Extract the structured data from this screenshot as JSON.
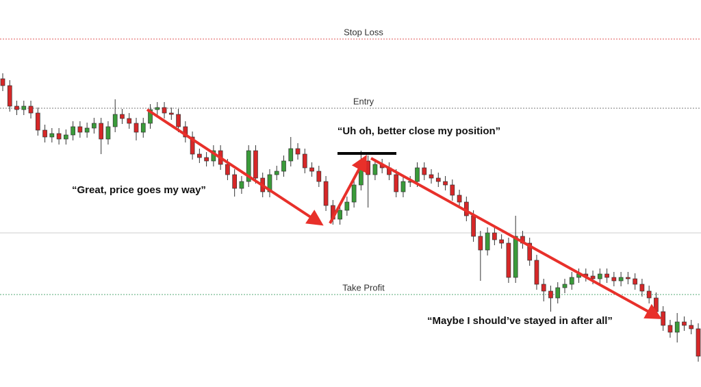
{
  "chart_data": {
    "type": "candlestick",
    "ylim": [
      0,
      565
    ],
    "up_color": "#3a9b3a",
    "down_color": "#d62728",
    "open": [
      450,
      440,
      410,
      405,
      410,
      400,
      375,
      365,
      370,
      362,
      368,
      380,
      372,
      378,
      385,
      362,
      380,
      398,
      392,
      385,
      372,
      385,
      405,
      408,
      400,
      398,
      380,
      365,
      340,
      335,
      330,
      345,
      325,
      310,
      290,
      300,
      345,
      305,
      285,
      310,
      315,
      330,
      348,
      340,
      320,
      315,
      300,
      265,
      245,
      258,
      270,
      295,
      330,
      310,
      325,
      320,
      310,
      285,
      300,
      300,
      320,
      310,
      305,
      300,
      295,
      280,
      270,
      250,
      220,
      200,
      225,
      215,
      210,
      160,
      220,
      210,
      185,
      150,
      140,
      130,
      145,
      150,
      160,
      165,
      162,
      158,
      165,
      160,
      155,
      160,
      158,
      150,
      140,
      130,
      110,
      90,
      80,
      95,
      90,
      85
    ],
    "high": [
      458,
      448,
      418,
      418,
      418,
      408,
      383,
      378,
      378,
      376,
      388,
      388,
      386,
      393,
      393,
      388,
      420,
      406,
      400,
      393,
      393,
      413,
      416,
      416,
      408,
      406,
      388,
      373,
      348,
      343,
      353,
      353,
      333,
      318,
      308,
      353,
      353,
      313,
      318,
      323,
      338,
      365,
      356,
      348,
      328,
      323,
      308,
      273,
      266,
      278,
      303,
      345,
      338,
      333,
      333,
      328,
      318,
      308,
      308,
      328,
      328,
      318,
      313,
      308,
      303,
      288,
      278,
      258,
      228,
      233,
      233,
      223,
      218,
      250,
      228,
      218,
      193,
      158,
      148,
      153,
      158,
      168,
      173,
      173,
      170,
      173,
      173,
      168,
      168,
      168,
      166,
      158,
      148,
      138,
      118,
      98,
      108,
      103,
      98,
      93
    ],
    "low": [
      432,
      402,
      397,
      397,
      392,
      367,
      357,
      357,
      354,
      354,
      360,
      364,
      364,
      370,
      340,
      354,
      372,
      384,
      377,
      360,
      364,
      377,
      397,
      392,
      390,
      372,
      357,
      332,
      327,
      322,
      322,
      317,
      302,
      278,
      282,
      292,
      297,
      277,
      277,
      302,
      307,
      322,
      332,
      312,
      307,
      292,
      257,
      237,
      237,
      250,
      262,
      287,
      262,
      302,
      312,
      302,
      277,
      277,
      292,
      292,
      302,
      297,
      292,
      287,
      272,
      262,
      242,
      212,
      155,
      192,
      207,
      202,
      152,
      152,
      202,
      177,
      142,
      125,
      110,
      122,
      137,
      142,
      152,
      154,
      150,
      150,
      152,
      147,
      147,
      150,
      142,
      132,
      122,
      102,
      82,
      72,
      65,
      82,
      77,
      37
    ],
    "close": [
      440,
      410,
      405,
      410,
      400,
      375,
      365,
      370,
      362,
      368,
      380,
      372,
      378,
      385,
      362,
      380,
      398,
      392,
      385,
      372,
      385,
      405,
      408,
      400,
      398,
      380,
      365,
      340,
      335,
      330,
      345,
      325,
      310,
      290,
      300,
      345,
      305,
      285,
      310,
      315,
      330,
      348,
      340,
      320,
      315,
      300,
      265,
      245,
      258,
      270,
      295,
      330,
      310,
      325,
      320,
      310,
      285,
      300,
      300,
      320,
      310,
      305,
      300,
      295,
      280,
      270,
      250,
      220,
      200,
      225,
      215,
      210,
      160,
      220,
      210,
      185,
      150,
      140,
      130,
      145,
      150,
      160,
      165,
      162,
      158,
      165,
      160,
      155,
      160,
      158,
      150,
      140,
      130,
      110,
      90,
      80,
      95,
      90,
      85,
      45
    ],
    "levels": [
      {
        "label": "Stop Loss",
        "value": 508,
        "color": "#e05555",
        "dash": true
      },
      {
        "label": "Entry",
        "value": 407,
        "color": "#777777",
        "dash": true
      },
      {
        "value": 225,
        "color": "#cccccc",
        "dash": false
      },
      {
        "label": "Take Profit",
        "value": 135,
        "color": "#55aa77",
        "dash": true
      }
    ],
    "annotations": [
      "“Great, price goes my way”",
      "“Uh oh, better close my position”",
      "“Maybe I should’ve stayed in after all”"
    ]
  }
}
